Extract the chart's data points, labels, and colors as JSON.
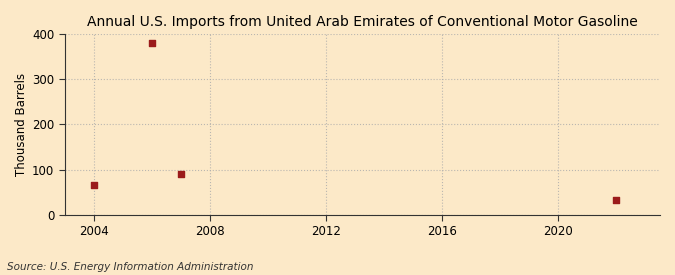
{
  "title": "Annual U.S. Imports from United Arab Emirates of Conventional Motor Gasoline",
  "ylabel": "Thousand Barrels",
  "source": "Source: U.S. Energy Information Administration",
  "background_color": "#fce9c8",
  "plot_bg_color": "#fce9c8",
  "data_points": [
    {
      "year": 2004,
      "value": 65
    },
    {
      "year": 2006,
      "value": 381
    },
    {
      "year": 2007,
      "value": 90
    },
    {
      "year": 2022,
      "value": 33
    }
  ],
  "marker_color": "#9b1b1b",
  "marker_size": 25,
  "xlim": [
    2003,
    2023.5
  ],
  "ylim": [
    0,
    400
  ],
  "yticks": [
    0,
    100,
    200,
    300,
    400
  ],
  "xticks": [
    2004,
    2008,
    2012,
    2016,
    2020
  ],
  "grid_color": "#aaaaaa",
  "grid_alpha": 0.8,
  "title_fontsize": 10,
  "ylabel_fontsize": 8.5,
  "source_fontsize": 7.5,
  "tick_fontsize": 8.5
}
